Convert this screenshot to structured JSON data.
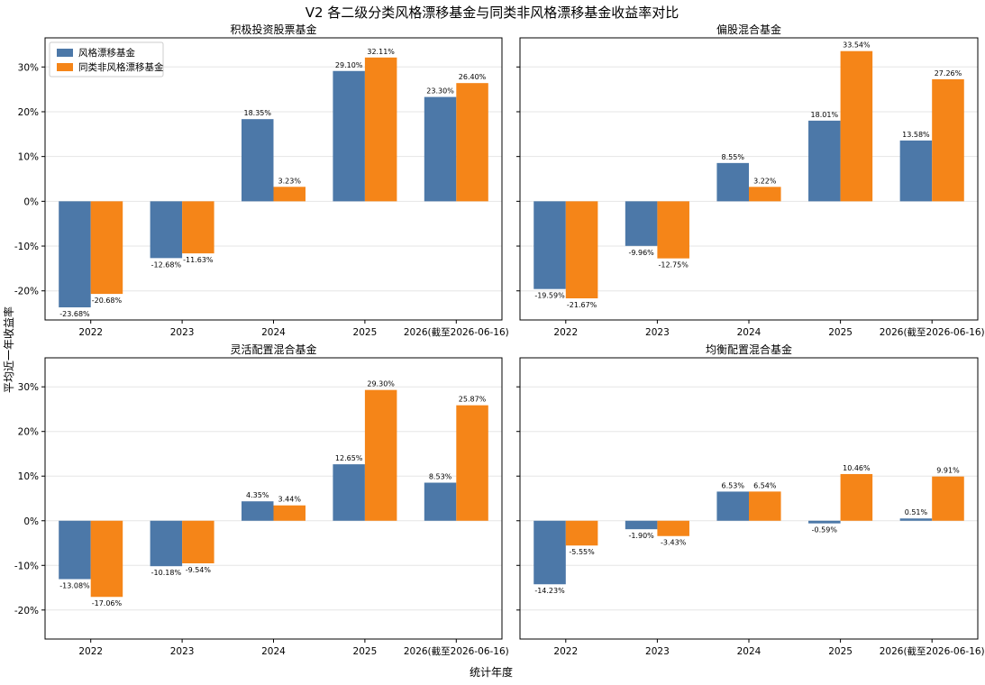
{
  "figure": {
    "title": "V2 各二级分类风格漂移基金与同类非风格漂移基金收益率对比",
    "ylabel": "平均近一年收益率",
    "xlabel": "统计年度"
  },
  "colors": {
    "drift": "#4c78a8",
    "non_drift": "#f58518"
  },
  "legend": {
    "placement": "top-left",
    "entries": [
      "风格漂移基金",
      "同类非风格漂移基金"
    ]
  },
  "chart_data": [
    {
      "type": "bar",
      "title": "积极投资股票基金",
      "categories": [
        "2022",
        "2023",
        "2024",
        "2025",
        "2026(截至2026-06-16)"
      ],
      "series": [
        {
          "name": "风格漂移基金",
          "values": [
            -23.68,
            -12.68,
            18.35,
            29.1,
            23.3
          ],
          "labels": [
            "-23.68%",
            "-12.68%",
            "18.35%",
            "29.10%",
            "23.30%"
          ]
        },
        {
          "name": "同类非风格漂移基金",
          "values": [
            -20.68,
            -11.63,
            3.23,
            32.11,
            26.4
          ],
          "labels": [
            "-20.68%",
            "-11.63%",
            "3.23%",
            "32.11%",
            "26.40%"
          ]
        }
      ],
      "ylim": [
        -26.5,
        36.5
      ],
      "yticks": [
        -20,
        -10,
        0,
        10,
        20,
        30
      ],
      "ytick_labels": [
        "-20%",
        "-10%",
        "0%",
        "10%",
        "20%",
        "30%"
      ],
      "grid": true
    },
    {
      "type": "bar",
      "title": "偏股混合基金",
      "categories": [
        "2022",
        "2023",
        "2024",
        "2025",
        "2026(截至2026-06-16)"
      ],
      "series": [
        {
          "name": "风格漂移基金",
          "values": [
            -19.59,
            -9.96,
            8.55,
            18.01,
            13.58
          ],
          "labels": [
            "-19.59%",
            "-9.96%",
            "8.55%",
            "18.01%",
            "13.58%"
          ]
        },
        {
          "name": "同类非风格漂移基金",
          "values": [
            -21.67,
            -12.75,
            3.22,
            33.54,
            27.26
          ],
          "labels": [
            "-21.67%",
            "-12.75%",
            "3.22%",
            "33.54%",
            "27.26%"
          ]
        }
      ],
      "ylim": [
        -26.5,
        36.5
      ],
      "yticks": [
        -20,
        -10,
        0,
        10,
        20,
        30
      ],
      "ytick_labels": [],
      "grid": true
    },
    {
      "type": "bar",
      "title": "灵活配置混合基金",
      "categories": [
        "2022",
        "2023",
        "2024",
        "2025",
        "2026(截至2026-06-16)"
      ],
      "series": [
        {
          "name": "风格漂移基金",
          "values": [
            -13.08,
            -10.18,
            4.35,
            12.65,
            8.53
          ],
          "labels": [
            "-13.08%",
            "-10.18%",
            "4.35%",
            "12.65%",
            "8.53%"
          ]
        },
        {
          "name": "同类非风格漂移基金",
          "values": [
            -17.06,
            -9.54,
            3.44,
            29.3,
            25.87
          ],
          "labels": [
            "-17.06%",
            "-9.54%",
            "3.44%",
            "29.30%",
            "25.87%"
          ]
        }
      ],
      "ylim": [
        -26.5,
        36.5
      ],
      "yticks": [
        -20,
        -10,
        0,
        10,
        20,
        30
      ],
      "ytick_labels": [
        "-20%",
        "-10%",
        "0%",
        "10%",
        "20%",
        "30%"
      ],
      "grid": true
    },
    {
      "type": "bar",
      "title": "均衡配置混合基金",
      "categories": [
        "2022",
        "2023",
        "2024",
        "2025",
        "2026(截至2026-06-16)"
      ],
      "series": [
        {
          "name": "风格漂移基金",
          "values": [
            -14.23,
            -1.9,
            6.53,
            -0.59,
            0.51
          ],
          "labels": [
            "-14.23%",
            "-1.90%",
            "6.53%",
            "-0.59%",
            "0.51%"
          ]
        },
        {
          "name": "同类非风格漂移基金",
          "values": [
            -5.55,
            -3.43,
            6.54,
            10.46,
            9.91
          ],
          "labels": [
            "-5.55%",
            "-3.43%",
            "6.54%",
            "10.46%",
            "9.91%"
          ]
        }
      ],
      "ylim": [
        -26.5,
        36.5
      ],
      "yticks": [
        -20,
        -10,
        0,
        10,
        20,
        30
      ],
      "ytick_labels": [],
      "grid": true
    }
  ]
}
